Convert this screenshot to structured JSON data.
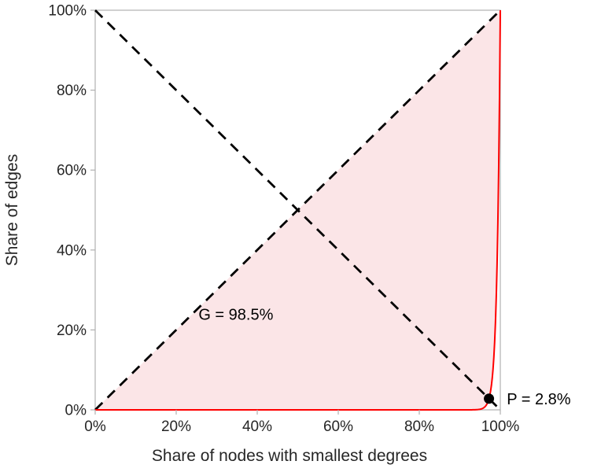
{
  "figure": {
    "background": "#ffffff"
  },
  "chart_data": {
    "type": "line",
    "title": "",
    "xlabel": "Share of nodes with smallest degrees",
    "ylabel": "Share of edges",
    "xlim": [
      0,
      100
    ],
    "ylim": [
      0,
      100
    ],
    "grid": false,
    "legend": false,
    "x_ticks": {
      "values": [
        0,
        20,
        40,
        60,
        80,
        100
      ],
      "labels": [
        "0%",
        "20%",
        "40%",
        "60%",
        "80%",
        "100%"
      ]
    },
    "y_ticks": {
      "values": [
        0,
        20,
        40,
        60,
        80,
        100
      ],
      "labels": [
        "0%",
        "20%",
        "40%",
        "60%",
        "80%",
        "100%"
      ]
    },
    "series": [
      {
        "name": "Lorenz curve of degree distribution",
        "color": "#ff0000",
        "line_width": 2,
        "model": "y = 100*(x/100)^k",
        "power_exponent": 126,
        "points": [
          [
            0,
            0
          ],
          [
            20,
            0
          ],
          [
            40,
            0
          ],
          [
            60,
            0
          ],
          [
            80,
            0
          ],
          [
            90,
            0
          ],
          [
            95,
            0.2
          ],
          [
            97.2,
            2.8
          ],
          [
            98,
            7.8
          ],
          [
            99,
            28.2
          ],
          [
            99.5,
            53.1
          ],
          [
            100,
            100
          ]
        ]
      }
    ],
    "reference_lines": [
      {
        "name": "equality-diagonal",
        "from": [
          0,
          0
        ],
        "to": [
          100,
          100
        ],
        "style": "dashed",
        "color": "#000000"
      },
      {
        "name": "anti-diagonal",
        "from": [
          0,
          100
        ],
        "to": [
          100,
          0
        ],
        "style": "dashed",
        "color": "#000000"
      }
    ],
    "gini_area": {
      "fill_color": "#fbe5e7",
      "between": [
        "equality-diagonal",
        "lorenz-curve"
      ],
      "gini_value": "98.5%"
    },
    "point": {
      "x": 97.2,
      "y": 2.8,
      "color": "#000000",
      "radius": 6.5,
      "label": "P = 2.8%"
    },
    "annotations": [
      {
        "id": "gini-label",
        "text": "G = 98.5%",
        "x": 25.5,
        "y": 22.5
      },
      {
        "id": "p-label",
        "text": "P = 2.8%",
        "x": 101.6,
        "y": 2.8
      }
    ],
    "axis_color": "#b0b0b0",
    "text_color": "#262626",
    "dash_pattern": "13 9",
    "dash_width": 2.8
  }
}
